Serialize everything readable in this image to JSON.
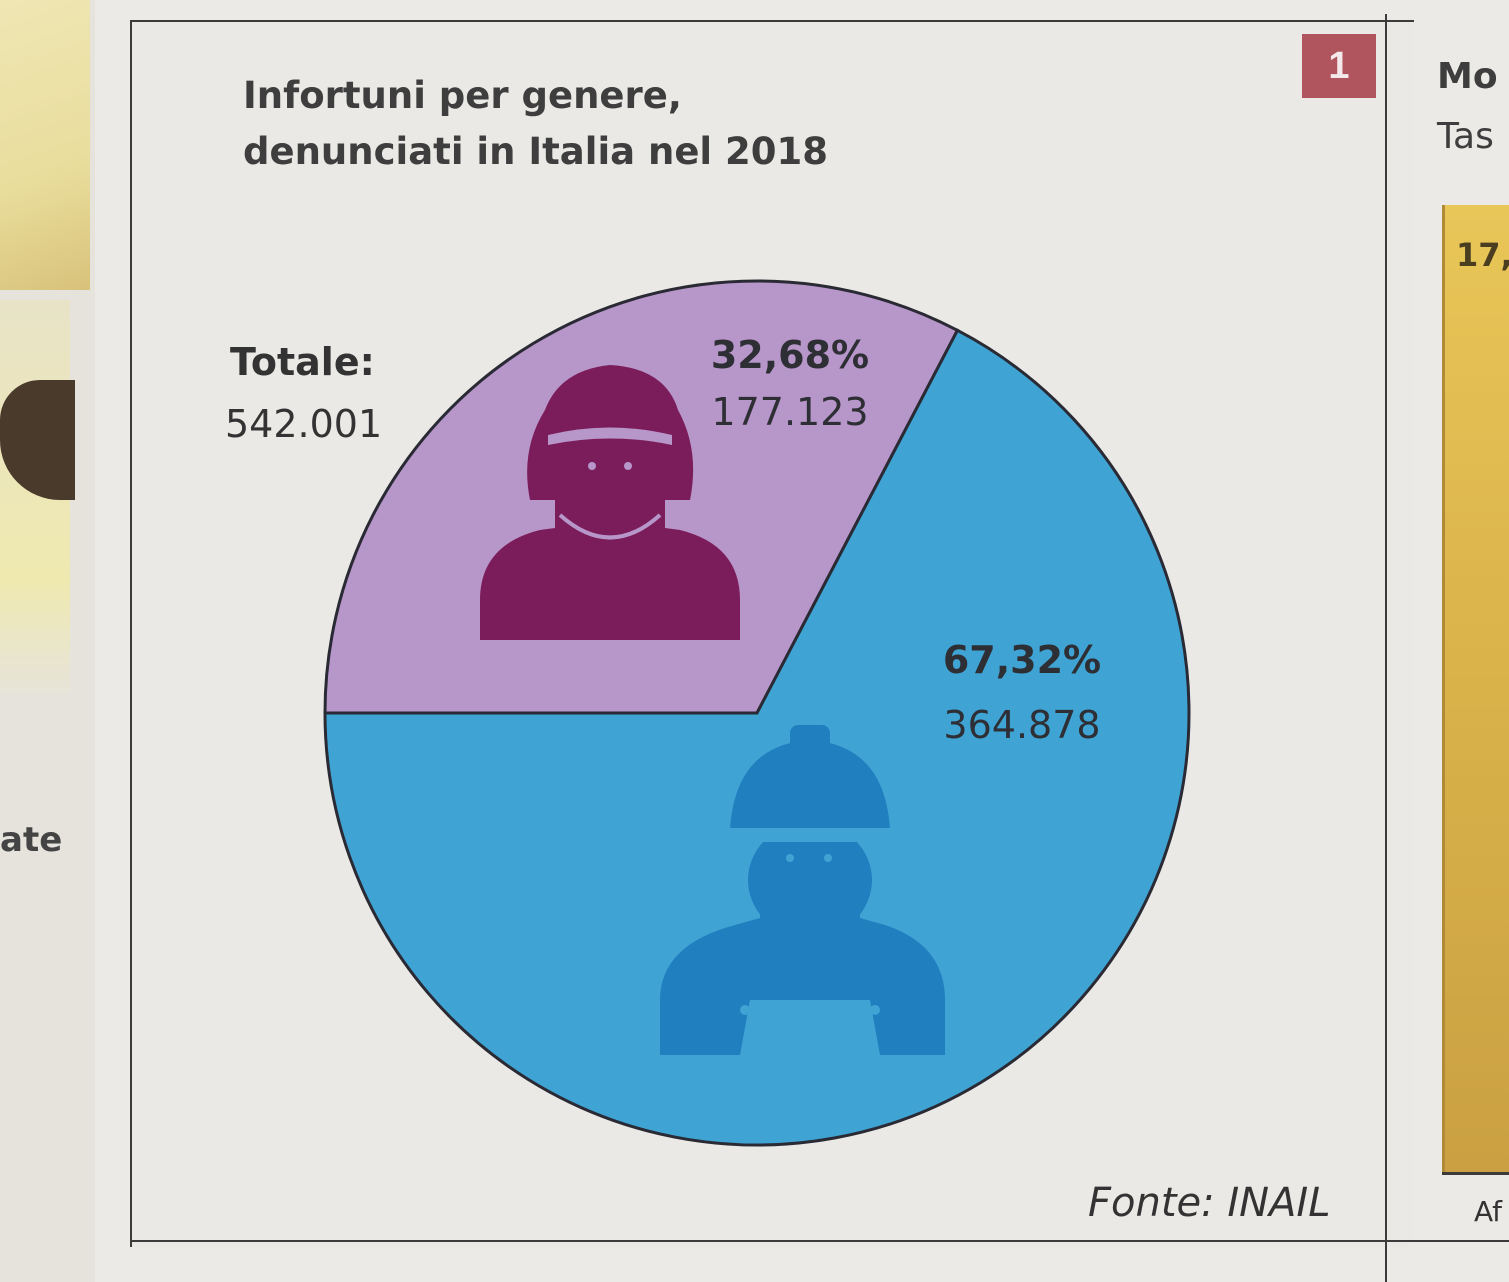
{
  "badge": "1",
  "title_line1": "Infortuni per genere,",
  "title_line2": "denunciati in Italia nel 2018",
  "total": {
    "label": "Totale:",
    "value": "542.001"
  },
  "source": "Fonte: INAIL",
  "left_fragment": "ate",
  "right_fragment": {
    "title": "Mo",
    "subtitle": "Tas",
    "bar_label": "17,",
    "category": "Af"
  },
  "chart_data": {
    "type": "pie",
    "title": "Infortuni per genere, denunciati in Italia nel 2018",
    "total": 542001,
    "slices": [
      {
        "label": "32,68%",
        "value_text": "177.123",
        "value": 177123,
        "percent": 32.68,
        "color": "#b796c9",
        "icon": "female-worker-icon",
        "icon_color": "#7b1d5a"
      },
      {
        "label": "67,32%",
        "value_text": "364.878",
        "value": 364878,
        "percent": 67.32,
        "color": "#3fa4d4",
        "icon": "male-worker-hardhat-icon",
        "icon_color": "#1f7fbf"
      }
    ]
  }
}
